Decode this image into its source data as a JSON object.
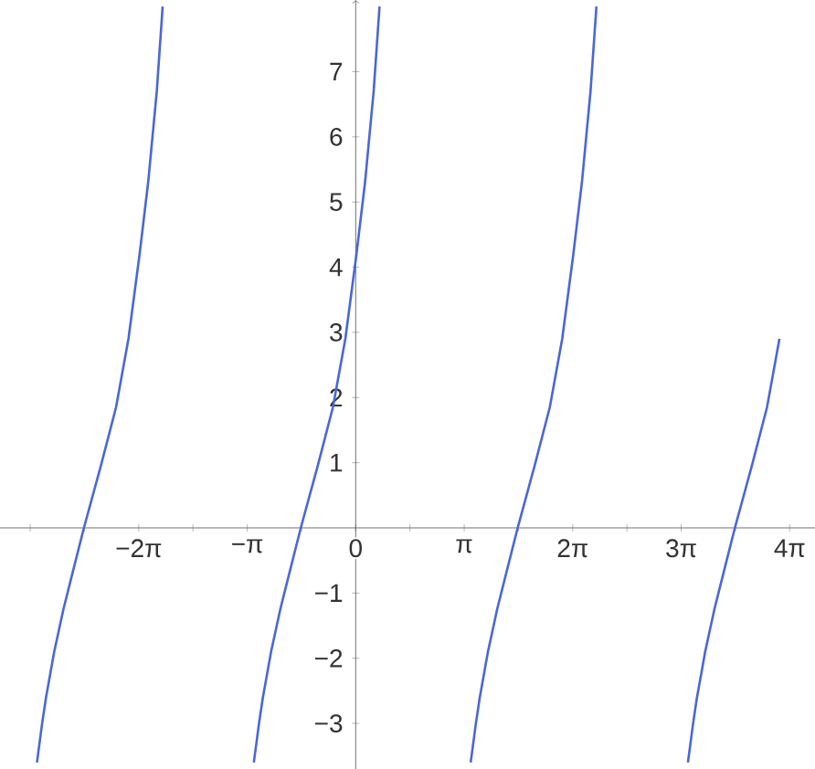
{
  "chart_data": {
    "type": "line",
    "xlim": [
      -10.3,
      13.3
    ],
    "ylim": [
      -3.7,
      8.1
    ],
    "xticks": [
      {
        "value": -9.4248,
        "label": null
      },
      {
        "value": -7.854,
        "label": null
      },
      {
        "value": -6.2832,
        "label": "−2π"
      },
      {
        "value": -4.7124,
        "label": null
      },
      {
        "value": -3.1416,
        "label": "−π"
      },
      {
        "value": -1.5708,
        "label": null
      },
      {
        "value": 0,
        "label": "0"
      },
      {
        "value": 1.5708,
        "label": null
      },
      {
        "value": 3.1416,
        "label": "π"
      },
      {
        "value": 4.7124,
        "label": null
      },
      {
        "value": 6.2832,
        "label": "2π"
      },
      {
        "value": 7.854,
        "label": null
      },
      {
        "value": 9.4248,
        "label": "3π"
      },
      {
        "value": 10.9956,
        "label": null
      },
      {
        "value": 12.5664,
        "label": "4π"
      }
    ],
    "yticks": [
      {
        "value": -3,
        "label": "−3"
      },
      {
        "value": -2,
        "label": "−2"
      },
      {
        "value": -1,
        "label": "−1"
      },
      {
        "value": 1,
        "label": "1"
      },
      {
        "value": 2,
        "label": "2"
      },
      {
        "value": 3,
        "label": "3"
      },
      {
        "value": 4,
        "label": "4"
      },
      {
        "value": 5,
        "label": "5"
      },
      {
        "value": 6,
        "label": "6"
      },
      {
        "value": 7,
        "label": "7"
      }
    ],
    "marker": "none",
    "line_style": "solid",
    "series": [
      {
        "color": "#4a67d6",
        "x": [
          -9.23,
          -9.08,
          -8.97,
          -8.73,
          -8.46,
          -8.18,
          -7.87,
          -7.38,
          -6.94,
          -6.58,
          -6.26,
          -6.01,
          -5.76,
          -5.59
        ],
        "values": [
          -3.6,
          -3.0,
          -2.61,
          -1.9,
          -1.24,
          -0.65,
          0,
          0.95,
          1.85,
          2.9,
          4.19,
          5.3,
          6.7,
          8.0
        ]
      },
      {
        "color": "#4a67d6",
        "x": [
          -2.95,
          -2.8,
          -2.69,
          -2.45,
          -2.18,
          -1.9,
          -1.59,
          -1.1,
          -0.66,
          -0.3,
          0.02,
          0.27,
          0.52,
          0.69
        ],
        "values": [
          -3.6,
          -3.0,
          -2.61,
          -1.9,
          -1.24,
          -0.65,
          0,
          0.95,
          1.85,
          2.9,
          4.19,
          5.3,
          6.7,
          8.0
        ]
      },
      {
        "color": "#4a67d6",
        "x": [
          3.33,
          3.48,
          3.59,
          3.83,
          4.1,
          4.38,
          4.69,
          5.18,
          5.62,
          5.98,
          6.3,
          6.55,
          6.8,
          6.97
        ],
        "values": [
          -3.6,
          -3.0,
          -2.61,
          -1.9,
          -1.24,
          -0.65,
          0,
          0.95,
          1.85,
          2.9,
          4.19,
          5.3,
          6.7,
          8.0
        ]
      },
      {
        "color": "#4a67d6",
        "x": [
          9.62,
          9.77,
          9.88,
          10.12,
          10.39,
          10.67,
          10.98,
          11.47,
          11.91,
          12.27
        ],
        "values": [
          -3.6,
          -3.0,
          -2.61,
          -1.9,
          -1.24,
          -0.65,
          0,
          0.95,
          1.85,
          2.9
        ]
      }
    ]
  }
}
